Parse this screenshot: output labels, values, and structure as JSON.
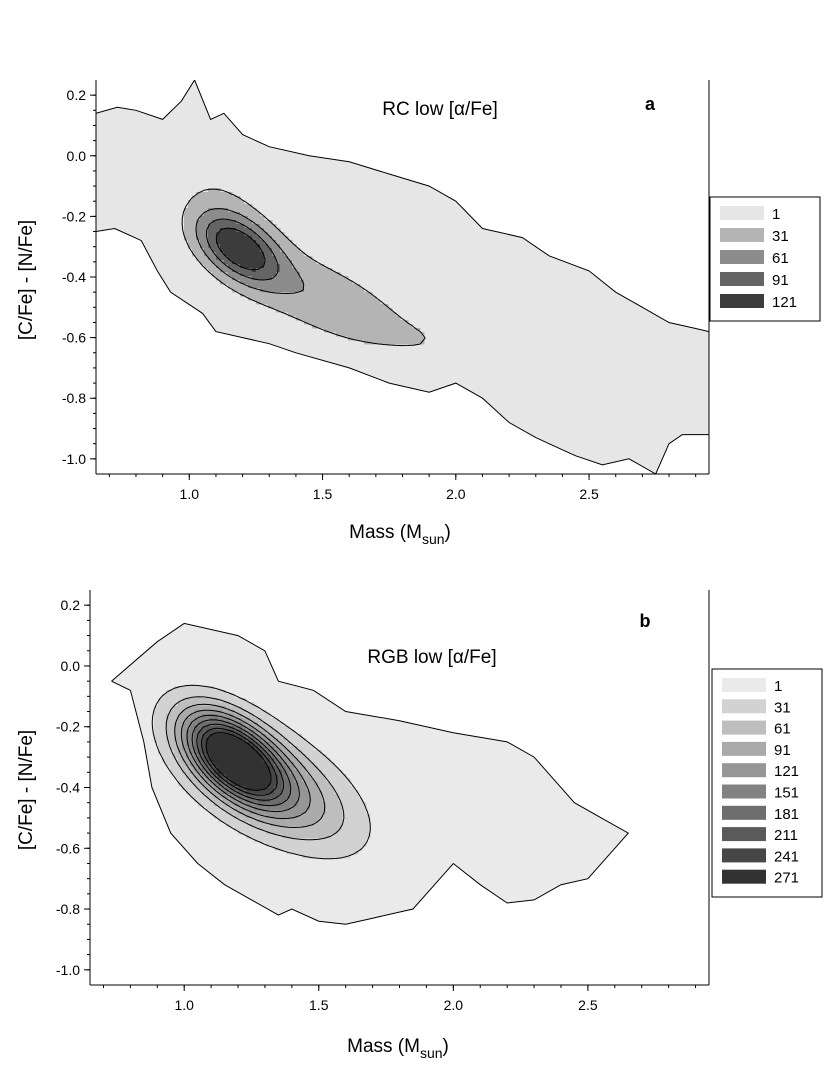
{
  "chart_data": [
    {
      "type": "heatmap",
      "subtype": "filled-contour",
      "panel_label": "a",
      "title": "RC low [α/Fe]",
      "xlabel": "Mass (M",
      "xlabel_sub": "sun",
      "xlabel_close": ")",
      "ylabel": "[C/Fe] - [N/Fe]",
      "xlim": [
        0.65,
        2.95
      ],
      "ylim": [
        -1.05,
        0.25
      ],
      "x_ticks": [
        1.0,
        1.5,
        2.0,
        2.5
      ],
      "x_tick_labels": [
        "1.0",
        "1.5",
        "2.0",
        "2.5"
      ],
      "y_ticks": [
        0.2,
        0.0,
        -0.2,
        -0.4,
        -0.6,
        -0.8,
        -1.0
      ],
      "y_tick_labels": [
        "0.2",
        "0.0",
        "-0.2",
        "-0.4",
        "-0.6",
        "-0.8",
        "-1.0"
      ],
      "legend_position": "right",
      "legend": [
        {
          "label": "1",
          "color": "#e6e6e6"
        },
        {
          "label": "31",
          "color": "#b4b4b4"
        },
        {
          "label": "61",
          "color": "#8c8c8c"
        },
        {
          "label": "91",
          "color": "#646464"
        },
        {
          "label": "121",
          "color": "#3c3c3c"
        }
      ],
      "density_peaks": [
        {
          "mass": 1.18,
          "value": -0.3,
          "sigma_x": 0.12,
          "sigma_y": 0.065,
          "amplitude": 135,
          "rotation_deg": -30
        },
        {
          "mass": 1.5,
          "value": -0.47,
          "sigma_x": 0.28,
          "sigma_y": 0.09,
          "amplitude": 55,
          "rotation_deg": -22
        },
        {
          "mass": 1.1,
          "value": -0.08,
          "sigma_x": 0.2,
          "sigma_y": 0.09,
          "amplitude": 22,
          "rotation_deg": -25
        },
        {
          "mass": 2.24,
          "value": -0.65,
          "sigma_x": 0.12,
          "sigma_y": 0.1,
          "amplitude": 28,
          "rotation_deg": 0
        },
        {
          "mass": 1.95,
          "value": -0.6,
          "sigma_x": 0.12,
          "sigma_y": 0.08,
          "amplitude": 14,
          "rotation_deg": 0
        }
      ],
      "outer_contour": [
        [
          0.65,
          -0.25
        ],
        [
          0.72,
          -0.24
        ],
        [
          0.82,
          -0.28
        ],
        [
          0.88,
          -0.38
        ],
        [
          0.93,
          -0.45
        ],
        [
          1.05,
          -0.52
        ],
        [
          1.1,
          -0.58
        ],
        [
          1.2,
          -0.6
        ],
        [
          1.3,
          -0.62
        ],
        [
          1.4,
          -0.65
        ],
        [
          1.6,
          -0.7
        ],
        [
          1.75,
          -0.75
        ],
        [
          1.9,
          -0.78
        ],
        [
          2.0,
          -0.75
        ],
        [
          2.1,
          -0.8
        ],
        [
          2.2,
          -0.88
        ],
        [
          2.3,
          -0.93
        ],
        [
          2.4,
          -0.97
        ],
        [
          2.45,
          -0.99
        ],
        [
          2.55,
          -1.02
        ],
        [
          2.65,
          -1.0
        ],
        [
          2.75,
          -1.05
        ],
        [
          2.8,
          -0.95
        ],
        [
          2.85,
          -0.92
        ],
        [
          2.95,
          -0.92
        ]
      ],
      "upper_contour": [
        [
          0.65,
          0.14
        ],
        [
          0.73,
          0.16
        ],
        [
          0.8,
          0.15
        ],
        [
          0.9,
          0.12
        ],
        [
          0.97,
          0.18
        ],
        [
          1.02,
          0.25
        ],
        [
          1.08,
          0.12
        ],
        [
          1.13,
          0.14
        ],
        [
          1.2,
          0.07
        ],
        [
          1.3,
          0.03
        ],
        [
          1.45,
          0.0
        ],
        [
          1.6,
          -0.02
        ],
        [
          1.75,
          -0.06
        ],
        [
          1.9,
          -0.1
        ],
        [
          2.0,
          -0.15
        ],
        [
          2.1,
          -0.24
        ],
        [
          2.25,
          -0.27
        ],
        [
          2.35,
          -0.33
        ],
        [
          2.5,
          -0.38
        ],
        [
          2.6,
          -0.45
        ],
        [
          2.7,
          -0.5
        ],
        [
          2.8,
          -0.55
        ],
        [
          2.9,
          -0.57
        ],
        [
          2.95,
          -0.58
        ]
      ]
    },
    {
      "type": "heatmap",
      "subtype": "filled-contour",
      "panel_label": "b",
      "title": "RGB low [α/Fe]",
      "xlabel": "Mass (M",
      "xlabel_sub": "sun",
      "xlabel_close": ")",
      "ylabel": "[C/Fe] - [N/Fe]",
      "xlim": [
        0.65,
        2.95
      ],
      "ylim": [
        -1.05,
        0.25
      ],
      "x_ticks": [
        1.0,
        1.5,
        2.0,
        2.5
      ],
      "x_tick_labels": [
        "1.0",
        "1.5",
        "2.0",
        "2.5"
      ],
      "y_ticks": [
        0.2,
        0.0,
        -0.2,
        -0.4,
        -0.6,
        -0.8,
        -1.0
      ],
      "y_tick_labels": [
        "0.2",
        "0.0",
        "-0.2",
        "-0.4",
        "-0.6",
        "-0.8",
        "-1.0"
      ],
      "legend_position": "right",
      "legend": [
        {
          "label": "1",
          "color": "#eaeaea"
        },
        {
          "label": "31",
          "color": "#d2d2d2"
        },
        {
          "label": "61",
          "color": "#bebebe"
        },
        {
          "label": "91",
          "color": "#aaaaaa"
        },
        {
          "label": "121",
          "color": "#969696"
        },
        {
          "label": "151",
          "color": "#828282"
        },
        {
          "label": "181",
          "color": "#6e6e6e"
        },
        {
          "label": "211",
          "color": "#5a5a5a"
        },
        {
          "label": "241",
          "color": "#464646"
        },
        {
          "label": "271",
          "color": "#323232"
        }
      ],
      "density_peaks": [
        {
          "mass": 1.18,
          "value": -0.3,
          "sigma_x": 0.14,
          "sigma_y": 0.075,
          "amplitude": 300,
          "rotation_deg": -35
        },
        {
          "mass": 1.35,
          "value": -0.4,
          "sigma_x": 0.22,
          "sigma_y": 0.1,
          "amplitude": 110,
          "rotation_deg": -28
        },
        {
          "mass": 1.2,
          "value": -0.35,
          "sigma_x": 0.38,
          "sigma_y": 0.2,
          "amplitude": 14,
          "rotation_deg": -20
        }
      ],
      "outer_contour": [
        [
          0.73,
          -0.05
        ],
        [
          0.8,
          -0.08
        ],
        [
          0.85,
          -0.25
        ],
        [
          0.88,
          -0.4
        ],
        [
          0.95,
          -0.55
        ],
        [
          1.05,
          -0.65
        ],
        [
          1.15,
          -0.72
        ],
        [
          1.25,
          -0.77
        ],
        [
          1.35,
          -0.82
        ],
        [
          1.4,
          -0.8
        ],
        [
          1.5,
          -0.84
        ],
        [
          1.6,
          -0.85
        ],
        [
          1.7,
          -0.83
        ],
        [
          1.85,
          -0.8
        ],
        [
          1.95,
          -0.7
        ],
        [
          2.0,
          -0.65
        ],
        [
          2.1,
          -0.72
        ],
        [
          2.2,
          -0.78
        ],
        [
          2.3,
          -0.77
        ],
        [
          2.4,
          -0.72
        ],
        [
          2.5,
          -0.7
        ],
        [
          2.6,
          -0.6
        ],
        [
          2.65,
          -0.55
        ],
        [
          2.55,
          -0.5
        ],
        [
          2.45,
          -0.45
        ],
        [
          2.38,
          -0.38
        ],
        [
          2.3,
          -0.3
        ],
        [
          2.2,
          -0.25
        ],
        [
          2.0,
          -0.22
        ],
        [
          1.8,
          -0.18
        ],
        [
          1.6,
          -0.15
        ],
        [
          1.48,
          -0.08
        ],
        [
          1.35,
          -0.05
        ],
        [
          1.3,
          0.05
        ],
        [
          1.2,
          0.1
        ],
        [
          1.0,
          0.14
        ],
        [
          0.9,
          0.08
        ],
        [
          0.73,
          -0.05
        ]
      ]
    }
  ]
}
